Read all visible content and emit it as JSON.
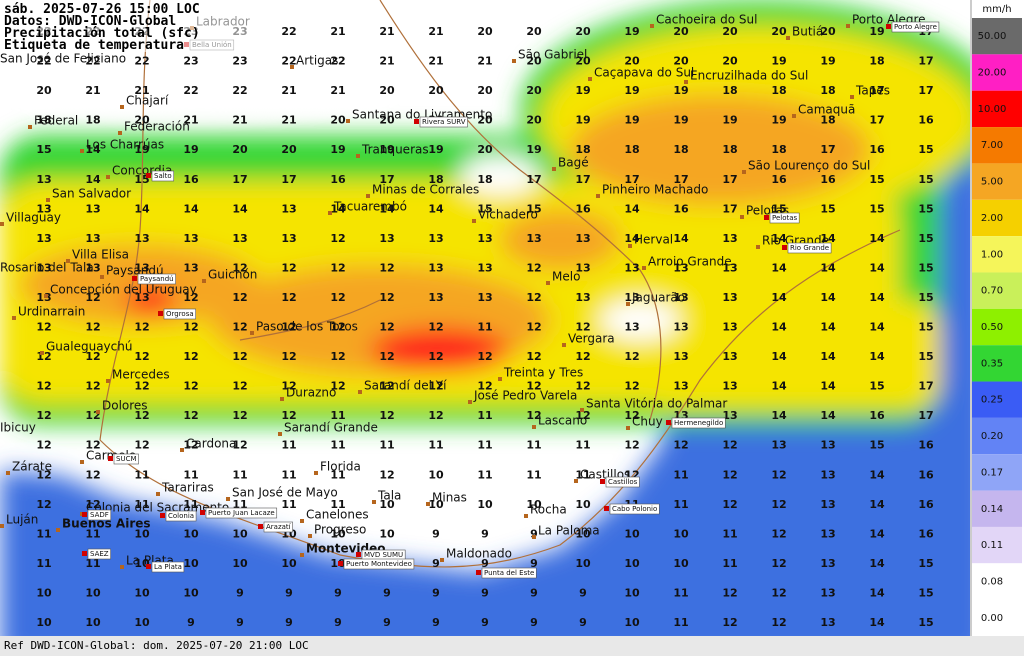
{
  "header": {
    "time": "sáb. 2025-07-26 15:00 LOC",
    "source": "Datos: DWD-ICON-Global",
    "variable": "Precipitación total (sfc)",
    "label_note": "Etiqueta de temperatura"
  },
  "footer": "Ref DWD-ICON-Global: dom. 2025-07-20 21:00 LOC",
  "legend": {
    "unit": "mm/h",
    "items": [
      {
        "label": "50.00",
        "color": "#6a6a6a"
      },
      {
        "label": "20.00",
        "color": "#ff1fc4"
      },
      {
        "label": "10.00",
        "color": "#ff0000"
      },
      {
        "label": "7.00",
        "color": "#f57a00"
      },
      {
        "label": "5.00",
        "color": "#f5a623"
      },
      {
        "label": "2.00",
        "color": "#f5d000"
      },
      {
        "label": "1.00",
        "color": "#f5f55a"
      },
      {
        "label": "0.70",
        "color": "#c9f05a"
      },
      {
        "label": "0.50",
        "color": "#8ef000"
      },
      {
        "label": "0.35",
        "color": "#33d633"
      },
      {
        "label": "0.25",
        "color": "#3a5cf5"
      },
      {
        "label": "0.20",
        "color": "#6283f5"
      },
      {
        "label": "0.17",
        "color": "#8fa5f7"
      },
      {
        "label": "0.14",
        "color": "#c5b6ee"
      },
      {
        "label": "0.11",
        "color": "#e2d6f7"
      },
      {
        "label": "0.08",
        "color": "#ffffff"
      },
      {
        "label": "0.00",
        "color": "#ffffff"
      }
    ]
  },
  "grid_values": [
    [
      22,
      22,
      22,
      23,
      23,
      22,
      21,
      21,
      21,
      20,
      20,
      20,
      19,
      20,
      20,
      20,
      20,
      19,
      17
    ],
    [
      22,
      22,
      22,
      23,
      23,
      22,
      22,
      21,
      21,
      21,
      20,
      20,
      20,
      20,
      20,
      19,
      19,
      18,
      17
    ],
    [
      20,
      21,
      21,
      22,
      22,
      21,
      21,
      20,
      20,
      20,
      20,
      19,
      19,
      19,
      18,
      18,
      18,
      17,
      17
    ],
    [
      18,
      18,
      20,
      21,
      21,
      21,
      20,
      20,
      20,
      20,
      20,
      19,
      19,
      19,
      19,
      19,
      18,
      17,
      16
    ],
    [
      15,
      14,
      19,
      19,
      20,
      20,
      19,
      19,
      19,
      20,
      19,
      18,
      18,
      18,
      18,
      18,
      17,
      16,
      15
    ],
    [
      13,
      14,
      15,
      16,
      17,
      17,
      16,
      17,
      18,
      18,
      17,
      17,
      17,
      17,
      17,
      16,
      16,
      15,
      15
    ],
    [
      13,
      13,
      14,
      14,
      14,
      13,
      14,
      14,
      14,
      15,
      15,
      16,
      14,
      16,
      17,
      15,
      15,
      15,
      15
    ],
    [
      13,
      13,
      13,
      13,
      13,
      13,
      12,
      13,
      13,
      13,
      13,
      13,
      14,
      14,
      13,
      14,
      14,
      14,
      15
    ],
    [
      13,
      13,
      13,
      13,
      12,
      12,
      12,
      12,
      13,
      13,
      12,
      13,
      13,
      13,
      13,
      14,
      14,
      14,
      15
    ],
    [
      13,
      12,
      13,
      12,
      12,
      12,
      12,
      12,
      13,
      13,
      12,
      13,
      13,
      13,
      13,
      14,
      14,
      14,
      15
    ],
    [
      12,
      12,
      12,
      12,
      12,
      12,
      12,
      12,
      12,
      11,
      12,
      12,
      13,
      13,
      13,
      14,
      14,
      14,
      15
    ],
    [
      12,
      12,
      12,
      12,
      12,
      12,
      12,
      12,
      12,
      12,
      12,
      12,
      12,
      13,
      13,
      14,
      14,
      14,
      15
    ],
    [
      12,
      12,
      12,
      12,
      12,
      12,
      12,
      12,
      12,
      12,
      12,
      12,
      12,
      13,
      13,
      14,
      14,
      15,
      17
    ],
    [
      12,
      12,
      12,
      12,
      12,
      12,
      11,
      12,
      12,
      11,
      12,
      12,
      12,
      13,
      13,
      14,
      14,
      16,
      17
    ],
    [
      12,
      12,
      12,
      12,
      12,
      11,
      11,
      11,
      11,
      11,
      11,
      11,
      12,
      12,
      12,
      13,
      13,
      15,
      16
    ],
    [
      12,
      12,
      11,
      11,
      11,
      11,
      11,
      12,
      10,
      11,
      11,
      11,
      12,
      11,
      12,
      12,
      13,
      14,
      16
    ],
    [
      12,
      12,
      11,
      11,
      11,
      11,
      11,
      10,
      10,
      10,
      10,
      10,
      11,
      11,
      12,
      12,
      13,
      14,
      16
    ],
    [
      11,
      11,
      10,
      10,
      10,
      10,
      10,
      10,
      9,
      9,
      9,
      10,
      10,
      10,
      11,
      12,
      13,
      14,
      16
    ],
    [
      11,
      11,
      10,
      10,
      10,
      10,
      10,
      10,
      9,
      9,
      9,
      10,
      10,
      10,
      11,
      12,
      13,
      14,
      15
    ],
    [
      10,
      10,
      10,
      10,
      9,
      9,
      9,
      9,
      9,
      9,
      9,
      9,
      10,
      11,
      12,
      12,
      13,
      14,
      15
    ],
    [
      10,
      10,
      10,
      9,
      9,
      9,
      9,
      9,
      9,
      9,
      9,
      9,
      10,
      11,
      12,
      12,
      13,
      14,
      15
    ]
  ],
  "places": [
    "Labrador",
    "Cachoeira do Sul",
    "Porto Alegre",
    "Butiá",
    "San José de Feliciano",
    "São Gabriel",
    "Caçapava do Sul",
    "Encruzilhada do Sul",
    "Artigas",
    "Chajarí",
    "Santana do Livramento",
    "Tapes",
    "Camaquã",
    "Federal",
    "Federación",
    "Los Charrúas",
    "Tranqueras",
    "Concordia",
    "Bagé",
    "São Lourenço do Sul",
    "San Salvador",
    "Minas de Corrales",
    "Pinheiro Machado",
    "Villaguay",
    "Tacuarembó",
    "Vichadero",
    "Pelotas",
    "Herval",
    "Rio Grande",
    "Villa Elisa",
    "Paysandú",
    "Guichón",
    "Arroio Grande",
    "Rosario del Tala",
    "Melo",
    "Concepción del Uruguay",
    "Jaguarão",
    "Urdinarrain",
    "Paso de los Toros",
    "Vergara",
    "Gualeguaychú",
    "Mercedes",
    "Treinta y Tres",
    "Sarandí del Yí",
    "Durazno",
    "José Pedro Varela",
    "Dolores",
    "Santa Vitória do Palmar",
    "Sarandí Grande",
    "Lascano",
    "Chuy",
    "Ibicuy",
    "Cardona",
    "Carmelo",
    "Zárate",
    "Florida",
    "Castillos",
    "Tarariras",
    "San José de Mayo",
    "Tala",
    "Minas",
    "Colonia del Sacramento",
    "Rocha",
    "Canelones",
    "Luján",
    "Buenos Aires",
    "Progreso",
    "La Paloma",
    "Montevideo",
    "Maldonado",
    "La Plata"
  ],
  "stations": [
    "Bella Unión",
    "Rivera SURV",
    "Salto",
    "Paysandú",
    "Orgrosa",
    "Pelotas",
    "Rio Grande",
    "Porto Alegre",
    "Hermenegildo",
    "Castillos",
    "Cabo Polonio",
    "Colonia",
    "Puerto Juan Lacaze",
    "Arazatí",
    "MVD SUMU",
    "Puerto Montevideo",
    "Punta del Este",
    "SUCM",
    "SADF",
    "SAEZ",
    "La Plata"
  ]
}
